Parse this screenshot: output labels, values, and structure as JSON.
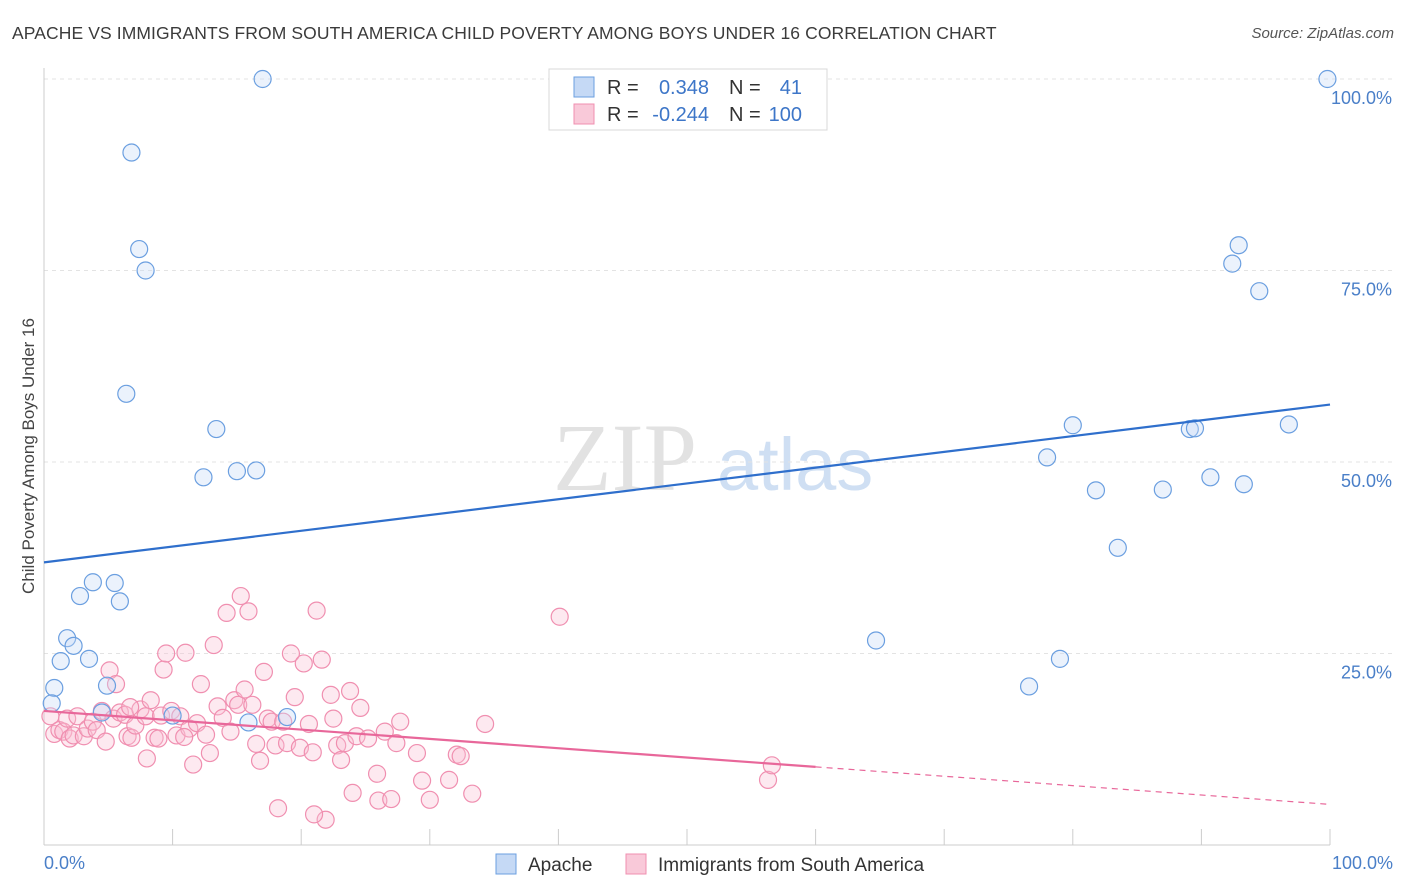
{
  "title": "APACHE VS IMMIGRANTS FROM SOUTH AMERICA CHILD POVERTY AMONG BOYS UNDER 16 CORRELATION CHART",
  "source": "Source: ZipAtlas.com",
  "watermark": {
    "zip": "ZIP",
    "atlas": "atlas"
  },
  "legend": {
    "rows": [
      {
        "r_label": "R =",
        "r_value": "0.348",
        "n_label": "N =",
        "n_value": "41"
      },
      {
        "r_label": "R =",
        "r_value": "-0.244",
        "n_label": "N =",
        "n_value": "100"
      }
    ]
  },
  "chart_data": {
    "type": "scatter",
    "ylabel": "Child Poverty Among Boys Under 16",
    "xlim": [
      0,
      100
    ],
    "ylim": [
      0,
      100
    ],
    "x_tick_labels": [
      "0.0%",
      "100.0%"
    ],
    "y_tick_labels": [
      "25.0%",
      "50.0%",
      "75.0%",
      "100.0%"
    ],
    "y_ticks": [
      25,
      50,
      75,
      100
    ],
    "grid": "horizontal dashed",
    "legend_position": "top-center",
    "colors": {
      "apache": "#6b9fe0",
      "immigrants": "#f08fb0",
      "apache_line": "#2f6fcc",
      "immigrants_line": "#e8679a"
    },
    "series": [
      {
        "name": "Apache",
        "trend": {
          "x0": 0,
          "y0": 36.9,
          "x1": 100,
          "y1": 57.5
        },
        "points": [
          [
            0.8,
            20.5
          ],
          [
            0.6,
            18.5
          ],
          [
            1.3,
            24.0
          ],
          [
            1.8,
            27.0
          ],
          [
            2.3,
            26.0
          ],
          [
            2.8,
            32.5
          ],
          [
            3.5,
            24.3
          ],
          [
            3.8,
            34.3
          ],
          [
            4.5,
            17.3
          ],
          [
            4.9,
            20.8
          ],
          [
            5.5,
            34.2
          ],
          [
            5.9,
            31.8
          ],
          [
            6.4,
            58.9
          ],
          [
            6.8,
            90.4
          ],
          [
            7.4,
            77.8
          ],
          [
            7.9,
            75.0
          ],
          [
            10.0,
            16.9
          ],
          [
            12.4,
            48.0
          ],
          [
            13.4,
            54.3
          ],
          [
            15.0,
            48.8
          ],
          [
            15.9,
            16.0
          ],
          [
            16.5,
            48.9
          ],
          [
            17.0,
            100.0
          ],
          [
            18.9,
            16.7
          ],
          [
            64.7,
            26.7
          ],
          [
            76.6,
            20.7
          ],
          [
            78.0,
            50.6
          ],
          [
            79.0,
            24.3
          ],
          [
            80.0,
            54.8
          ],
          [
            81.8,
            46.3
          ],
          [
            83.5,
            38.8
          ],
          [
            87.0,
            46.4
          ],
          [
            89.1,
            54.3
          ],
          [
            89.5,
            54.4
          ],
          [
            90.7,
            48.0
          ],
          [
            92.4,
            75.9
          ],
          [
            92.9,
            78.3
          ],
          [
            93.3,
            47.1
          ],
          [
            94.5,
            72.3
          ],
          [
            96.8,
            54.9
          ],
          [
            99.8,
            100.0
          ]
        ]
      },
      {
        "name": "Immigrants from South America",
        "trend": {
          "x0": 0,
          "y0": 17.5,
          "x1": 60,
          "y1": 10.2,
          "x_dash_end": 100,
          "y_dash_end": 5.3
        },
        "points": [
          [
            0.5,
            16.8
          ],
          [
            0.8,
            14.5
          ],
          [
            1.2,
            15.0
          ],
          [
            1.5,
            14.8
          ],
          [
            1.8,
            16.5
          ],
          [
            2.0,
            13.9
          ],
          [
            2.3,
            14.3
          ],
          [
            2.6,
            16.8
          ],
          [
            3.1,
            14.2
          ],
          [
            3.4,
            15.2
          ],
          [
            3.8,
            16.1
          ],
          [
            4.1,
            15.0
          ],
          [
            4.5,
            17.5
          ],
          [
            4.8,
            13.5
          ],
          [
            5.1,
            22.8
          ],
          [
            5.4,
            16.5
          ],
          [
            5.6,
            21.0
          ],
          [
            5.9,
            17.3
          ],
          [
            6.3,
            17.0
          ],
          [
            6.5,
            14.2
          ],
          [
            6.8,
            14.0
          ],
          [
            7.1,
            15.6
          ],
          [
            7.5,
            17.7
          ],
          [
            7.9,
            16.8
          ],
          [
            8.0,
            11.3
          ],
          [
            8.3,
            18.9
          ],
          [
            8.6,
            14.0
          ],
          [
            8.9,
            13.9
          ],
          [
            9.1,
            16.9
          ],
          [
            9.3,
            22.9
          ],
          [
            9.5,
            25.0
          ],
          [
            9.9,
            17.5
          ],
          [
            10.3,
            14.3
          ],
          [
            10.6,
            16.8
          ],
          [
            11.0,
            25.1
          ],
          [
            11.3,
            15.2
          ],
          [
            11.6,
            10.5
          ],
          [
            11.9,
            15.9
          ],
          [
            12.2,
            21.0
          ],
          [
            12.6,
            14.4
          ],
          [
            12.9,
            12.0
          ],
          [
            13.2,
            26.1
          ],
          [
            13.5,
            18.1
          ],
          [
            13.9,
            16.6
          ],
          [
            14.2,
            30.3
          ],
          [
            14.5,
            14.8
          ],
          [
            14.8,
            18.9
          ],
          [
            15.1,
            18.3
          ],
          [
            15.3,
            32.5
          ],
          [
            15.6,
            20.3
          ],
          [
            15.9,
            30.5
          ],
          [
            16.2,
            18.3
          ],
          [
            16.5,
            13.2
          ],
          [
            16.8,
            11.0
          ],
          [
            17.1,
            22.6
          ],
          [
            17.4,
            16.5
          ],
          [
            17.7,
            16.1
          ],
          [
            18.0,
            13.0
          ],
          [
            18.2,
            4.8
          ],
          [
            18.6,
            16.1
          ],
          [
            18.9,
            13.3
          ],
          [
            19.2,
            25.0
          ],
          [
            19.5,
            19.3
          ],
          [
            19.9,
            12.7
          ],
          [
            20.2,
            23.7
          ],
          [
            20.6,
            15.8
          ],
          [
            20.9,
            12.1
          ],
          [
            21.2,
            30.6
          ],
          [
            21.6,
            24.2
          ],
          [
            21.9,
            3.3
          ],
          [
            22.3,
            19.6
          ],
          [
            22.5,
            16.5
          ],
          [
            22.8,
            13.0
          ],
          [
            23.1,
            11.1
          ],
          [
            23.4,
            13.3
          ],
          [
            23.8,
            20.1
          ],
          [
            24.0,
            6.8
          ],
          [
            24.3,
            14.2
          ],
          [
            24.6,
            17.9
          ],
          [
            25.2,
            13.9
          ],
          [
            25.9,
            9.3
          ],
          [
            26.0,
            5.8
          ],
          [
            26.5,
            14.8
          ],
          [
            27.0,
            6.0
          ],
          [
            27.4,
            13.3
          ],
          [
            27.7,
            16.1
          ],
          [
            29.0,
            12.0
          ],
          [
            29.4,
            8.4
          ],
          [
            30.0,
            5.9
          ],
          [
            31.5,
            8.5
          ],
          [
            32.1,
            11.8
          ],
          [
            32.4,
            11.6
          ],
          [
            33.3,
            6.7
          ],
          [
            34.3,
            15.8
          ],
          [
            40.1,
            29.8
          ],
          [
            56.3,
            8.5
          ],
          [
            56.6,
            10.4
          ],
          [
            21.0,
            4.0
          ],
          [
            10.9,
            14.1
          ],
          [
            6.7,
            18.0
          ]
        ]
      }
    ]
  },
  "bottom_legend": {
    "apache": "Apache",
    "immigrants": "Immigrants from South America"
  }
}
